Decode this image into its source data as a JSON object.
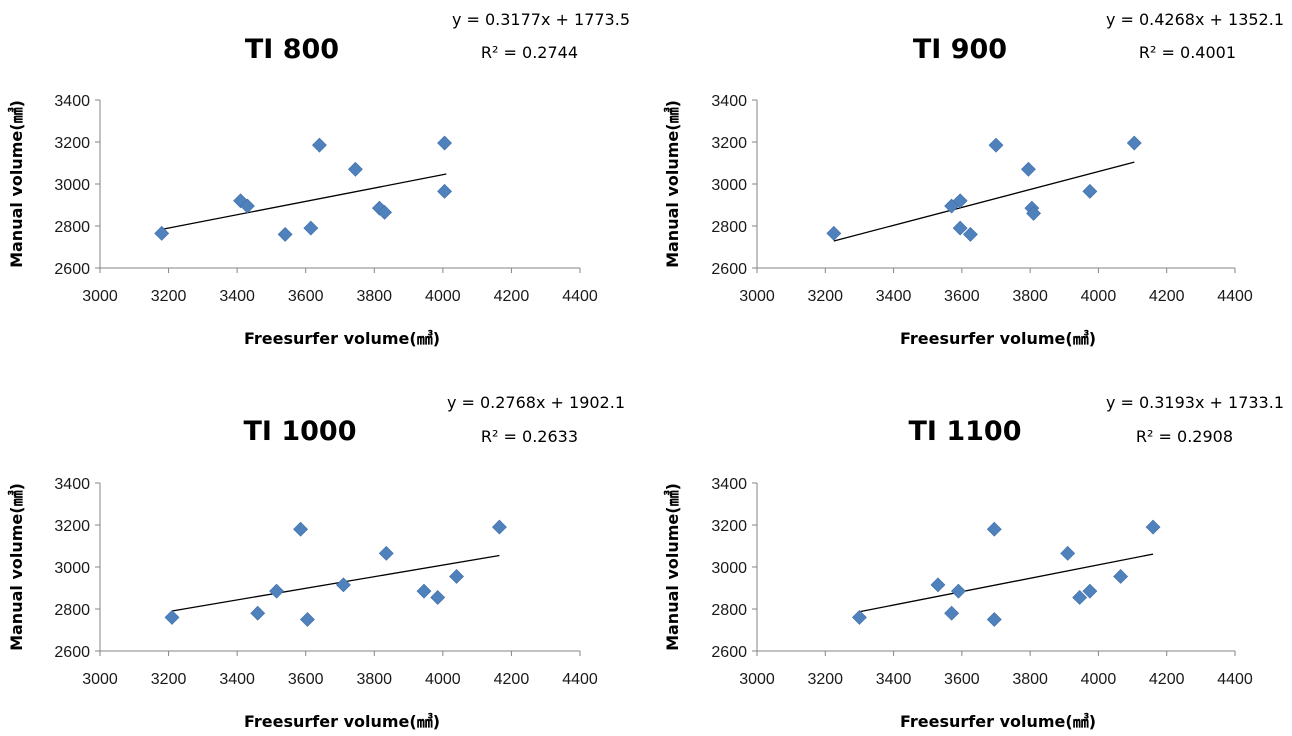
{
  "chart_data": [
    {
      "type": "scatter",
      "title": "TI 800",
      "equation": "y = 0.3177x + 1773.5",
      "r2": "R² = 0.2744",
      "xlabel": "Freesurfer volume(㎣)",
      "ylabel": "Manual volume(㎣)",
      "xlim": [
        3000,
        4400
      ],
      "ylim": [
        2600,
        3400
      ],
      "xticks": [
        "3000",
        "3200",
        "3400",
        "3600",
        "3800",
        "4000",
        "4200",
        "4400"
      ],
      "yticks": [
        "2600",
        "2800",
        "3000",
        "3200",
        "3400"
      ],
      "trendline": {
        "slope": 0.3177,
        "intercept": 1773.5,
        "x_range": [
          3180,
          4010
        ]
      },
      "marker_color": "#4F81BD",
      "points": [
        {
          "x": 3180,
          "y": 2765
        },
        {
          "x": 3410,
          "y": 2920
        },
        {
          "x": 3430,
          "y": 2895
        },
        {
          "x": 3540,
          "y": 2760
        },
        {
          "x": 3615,
          "y": 2790
        },
        {
          "x": 3640,
          "y": 3185
        },
        {
          "x": 3745,
          "y": 3070
        },
        {
          "x": 3815,
          "y": 2885
        },
        {
          "x": 3830,
          "y": 2865
        },
        {
          "x": 4005,
          "y": 3195
        },
        {
          "x": 4005,
          "y": 2965
        }
      ]
    },
    {
      "type": "scatter",
      "title": "TI 900",
      "equation": "y = 0.4268x + 1352.1",
      "r2": "R² = 0.4001",
      "xlabel": "Freesurfer volume(㎣)",
      "ylabel": "Manual volume(㎣)",
      "xlim": [
        3000,
        4400
      ],
      "ylim": [
        2600,
        3400
      ],
      "xticks": [
        "3000",
        "3200",
        "3400",
        "3600",
        "3800",
        "4000",
        "4200",
        "4400"
      ],
      "yticks": [
        "2600",
        "2800",
        "3000",
        "3200",
        "3400"
      ],
      "trendline": {
        "slope": 0.4268,
        "intercept": 1352.1,
        "x_range": [
          3225,
          4105
        ]
      },
      "marker_color": "#4F81BD",
      "points": [
        {
          "x": 3225,
          "y": 2765
        },
        {
          "x": 3570,
          "y": 2895
        },
        {
          "x": 3595,
          "y": 2920
        },
        {
          "x": 3595,
          "y": 2790
        },
        {
          "x": 3625,
          "y": 2760
        },
        {
          "x": 3700,
          "y": 3185
        },
        {
          "x": 3795,
          "y": 3070
        },
        {
          "x": 3805,
          "y": 2885
        },
        {
          "x": 3810,
          "y": 2860
        },
        {
          "x": 3975,
          "y": 2965
        },
        {
          "x": 4105,
          "y": 3195
        }
      ]
    },
    {
      "type": "scatter",
      "title": "TI 1000",
      "equation": "y = 0.2768x + 1902.1",
      "r2": "R² = 0.2633",
      "xlabel": "Freesurfer volume(㎣)",
      "ylabel": "Manual volume(㎣)",
      "xlim": [
        3000,
        4400
      ],
      "ylim": [
        2600,
        3400
      ],
      "xticks": [
        "3000",
        "3200",
        "3400",
        "3600",
        "3800",
        "4000",
        "4200",
        "4400"
      ],
      "yticks": [
        "2600",
        "2800",
        "3000",
        "3200",
        "3400"
      ],
      "trendline": {
        "slope": 0.2768,
        "intercept": 1902.1,
        "x_range": [
          3210,
          4165
        ]
      },
      "marker_color": "#4F81BD",
      "points": [
        {
          "x": 3210,
          "y": 2760
        },
        {
          "x": 3460,
          "y": 2780
        },
        {
          "x": 3515,
          "y": 2885
        },
        {
          "x": 3585,
          "y": 3180
        },
        {
          "x": 3605,
          "y": 2750
        },
        {
          "x": 3710,
          "y": 2915
        },
        {
          "x": 3835,
          "y": 3065
        },
        {
          "x": 3945,
          "y": 2885
        },
        {
          "x": 3985,
          "y": 2855
        },
        {
          "x": 4040,
          "y": 2955
        },
        {
          "x": 4165,
          "y": 3190
        }
      ]
    },
    {
      "type": "scatter",
      "title": "TI 1100",
      "equation": "y = 0.3193x + 1733.1",
      "r2": "R² = 0.2908",
      "xlabel": "Freesurfer volume(㎣)",
      "ylabel": "Manual volume(㎣)",
      "xlim": [
        3000,
        4400
      ],
      "ylim": [
        2600,
        3400
      ],
      "xticks": [
        "3000",
        "3200",
        "3400",
        "3600",
        "3800",
        "4000",
        "4200",
        "4400"
      ],
      "yticks": [
        "2600",
        "2800",
        "3000",
        "3200",
        "3400"
      ],
      "trendline": {
        "slope": 0.3193,
        "intercept": 1733.1,
        "x_range": [
          3300,
          4160
        ]
      },
      "marker_color": "#4F81BD",
      "points": [
        {
          "x": 3300,
          "y": 2760
        },
        {
          "x": 3530,
          "y": 2915
        },
        {
          "x": 3570,
          "y": 2780
        },
        {
          "x": 3590,
          "y": 2885
        },
        {
          "x": 3695,
          "y": 3180
        },
        {
          "x": 3695,
          "y": 2750
        },
        {
          "x": 3910,
          "y": 3065
        },
        {
          "x": 3945,
          "y": 2855
        },
        {
          "x": 3975,
          "y": 2885
        },
        {
          "x": 4065,
          "y": 2955
        },
        {
          "x": 4160,
          "y": 3190
        }
      ]
    }
  ]
}
